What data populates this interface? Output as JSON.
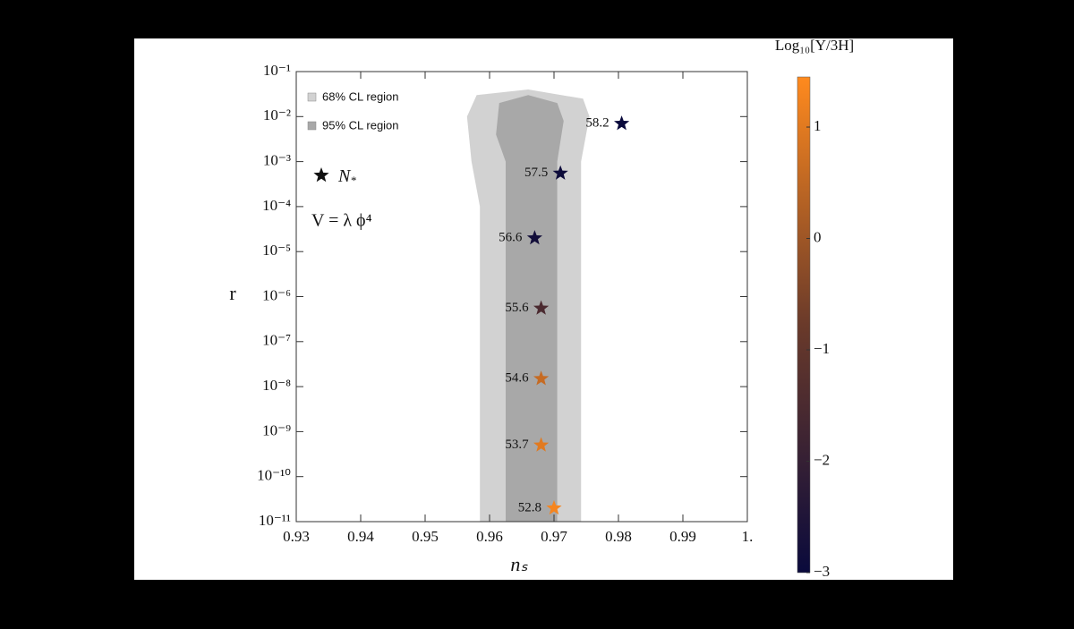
{
  "chart_data": {
    "type": "scatter",
    "xlabel": "nₛ",
    "ylabel": "r",
    "xlim": [
      0.93,
      1.0
    ],
    "xticks": [
      0.93,
      0.94,
      0.95,
      0.96,
      0.97,
      0.98,
      0.99,
      {
        "value": 1.0,
        "label": "1."
      }
    ],
    "ylim": [
      1e-11,
      0.1
    ],
    "log_y": true,
    "yticks": [
      {
        "value": 0.1,
        "label": "10⁻¹"
      },
      {
        "value": 0.01,
        "label": "10⁻²"
      },
      {
        "value": 0.001,
        "label": "10⁻³"
      },
      {
        "value": 0.0001,
        "label": "10⁻⁴"
      },
      {
        "value": 1e-05,
        "label": "10⁻⁵"
      },
      {
        "value": 1e-06,
        "label": "10⁻⁶"
      },
      {
        "value": 1e-07,
        "label": "10⁻⁷"
      },
      {
        "value": 1e-08,
        "label": "10⁻⁸"
      },
      {
        "value": 1e-09,
        "label": "10⁻⁹"
      },
      {
        "value": 1e-10,
        "label": "10⁻¹⁰"
      },
      {
        "value": 1e-11,
        "label": "10⁻¹¹"
      }
    ],
    "regions": [
      {
        "name": "68% CL region",
        "color": "#d2d2d2",
        "x": [
          0.9585,
          0.9742,
          0.9742,
          0.9755,
          0.9745,
          0.966,
          0.958,
          0.9565,
          0.9572,
          0.9585
        ],
        "y": [
          1e-11,
          1e-11,
          0.001,
          0.01,
          0.025,
          0.04,
          0.03,
          0.01,
          0.001,
          0.0001
        ]
      },
      {
        "name": "95% CL region",
        "color": "#a8a8a8",
        "x": [
          0.9625,
          0.9705,
          0.9705,
          0.9715,
          0.9705,
          0.966,
          0.9615,
          0.961,
          0.9625
        ],
        "y": [
          1e-11,
          1e-11,
          0.001,
          0.008,
          0.02,
          0.03,
          0.02,
          0.004,
          0.001
        ]
      }
    ],
    "points": {
      "x": [
        0.9805,
        0.971,
        0.967,
        0.968,
        0.968,
        0.968,
        0.97
      ],
      "y": [
        0.007,
        0.00055,
        2e-05,
        5.5e-07,
        1.5e-08,
        5e-10,
        2e-11
      ],
      "n_star": [
        58.2,
        57.5,
        56.6,
        55.6,
        54.6,
        53.7,
        52.8
      ],
      "color_values": [
        -3,
        -2.9,
        -2.8,
        -1.5,
        0.6,
        1.0,
        1.3
      ]
    },
    "marker_label": "N",
    "marker_label_sub": "*",
    "potential": "V = λ ϕ⁴",
    "colorbar": {
      "title": "Log₁₀[Υ/3H]",
      "clim": [
        -3,
        1.45
      ],
      "colors": [
        "#0a0a3c",
        "#6a3a2a",
        "#ff8a1e"
      ],
      "ticks": [
        1,
        0,
        {
          "value": -1,
          "label": "−1"
        },
        {
          "value": -2,
          "label": "−2"
        },
        {
          "value": -3,
          "label": "−3"
        }
      ]
    }
  }
}
